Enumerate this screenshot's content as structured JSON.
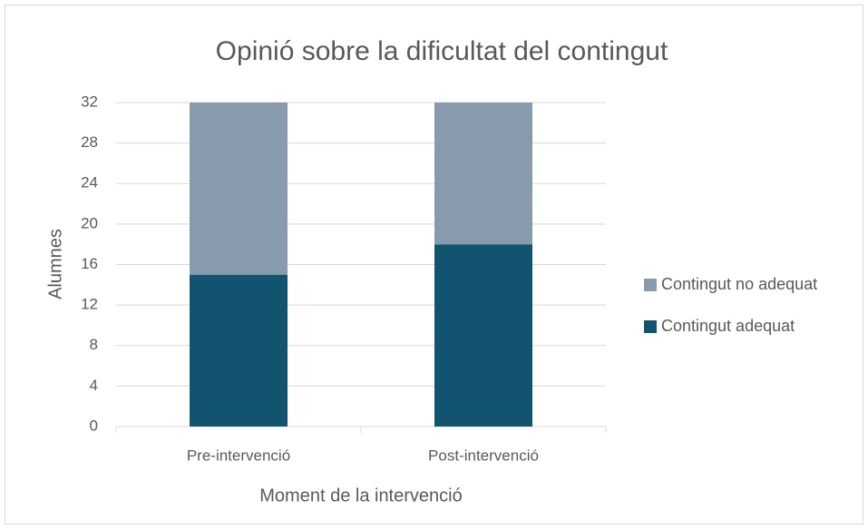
{
  "chart_data": {
    "type": "stacked_bar",
    "title": "Opinió sobre la dificultat del contingut",
    "x_label": "Moment de la intervenció",
    "y_label": "Alumnes",
    "categories": [
      "Pre-intervenció",
      "Post-intervenció"
    ],
    "series": [
      {
        "name": "Contingut adequat",
        "color": "#12536f",
        "values": [
          15,
          18
        ]
      },
      {
        "name": "Contingut no adequat",
        "color": "#879bac",
        "values": [
          17,
          14
        ]
      }
    ],
    "ylim": [
      0,
      32
    ],
    "yticks": [
      0,
      4,
      8,
      12,
      16,
      20,
      24,
      28,
      32
    ],
    "grid": true,
    "legend": "right"
  }
}
